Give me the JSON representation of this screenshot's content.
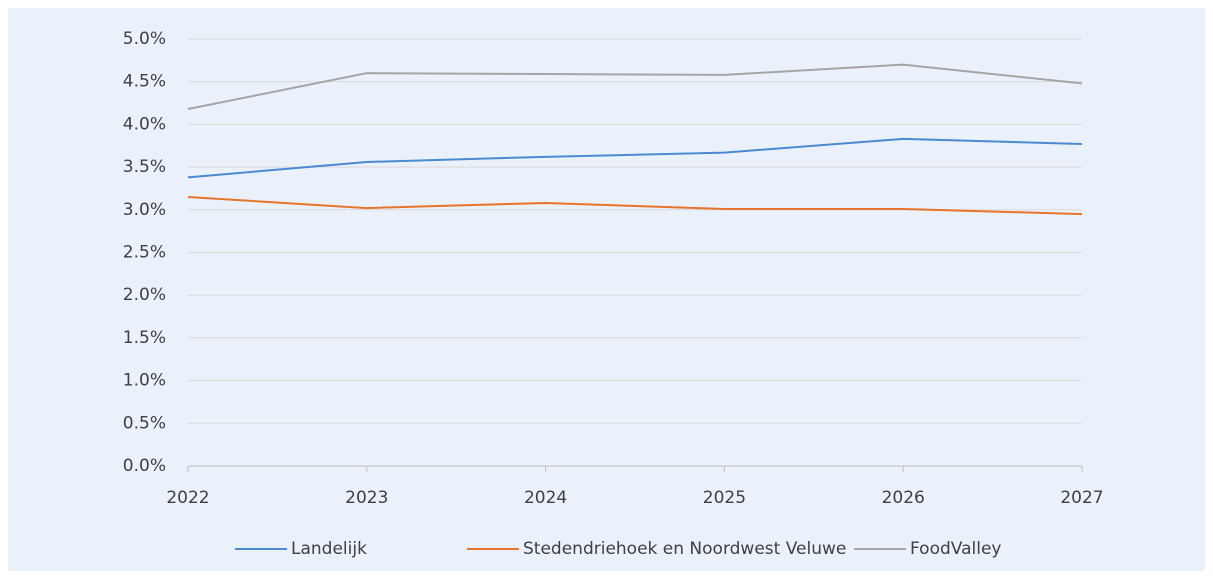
{
  "chart_data": {
    "type": "line",
    "x": [
      2022,
      2023,
      2024,
      2025,
      2026,
      2027
    ],
    "xlim": [
      2022,
      2027
    ],
    "xticks": [
      2022,
      2023,
      2024,
      2025,
      2026,
      2027
    ],
    "ylim": [
      0,
      5
    ],
    "yticks": [
      {
        "value": 0,
        "label": "0.0%"
      },
      {
        "value": 0.5,
        "label": "0.5%"
      },
      {
        "value": 1,
        "label": "1.0%"
      },
      {
        "value": 1.5,
        "label": "1.5%"
      },
      {
        "value": 2,
        "label": "2.0%"
      },
      {
        "value": 2.5,
        "label": "2.5%"
      },
      {
        "value": 3,
        "label": "3.0%"
      },
      {
        "value": 3.5,
        "label": "3.5%"
      },
      {
        "value": 4,
        "label": "4.0%"
      },
      {
        "value": 4.5,
        "label": "4.5%"
      },
      {
        "value": 5,
        "label": "5.0%"
      }
    ],
    "grid": true,
    "legend": "bottom",
    "series": [
      {
        "name": "Landelijk",
        "color": "#4a8ad0",
        "values": [
          3.38,
          3.56,
          3.62,
          3.67,
          3.83,
          3.77
        ]
      },
      {
        "name": "Stedendriehoek en Noordwest Veluwe",
        "color": "#e8732a",
        "values": [
          3.15,
          3.02,
          3.08,
          3.01,
          3.01,
          2.95
        ]
      },
      {
        "name": "FoodValley",
        "color": "#a5a5a5",
        "values": [
          4.18,
          4.6,
          4.59,
          4.58,
          4.7,
          4.48
        ]
      }
    ]
  }
}
